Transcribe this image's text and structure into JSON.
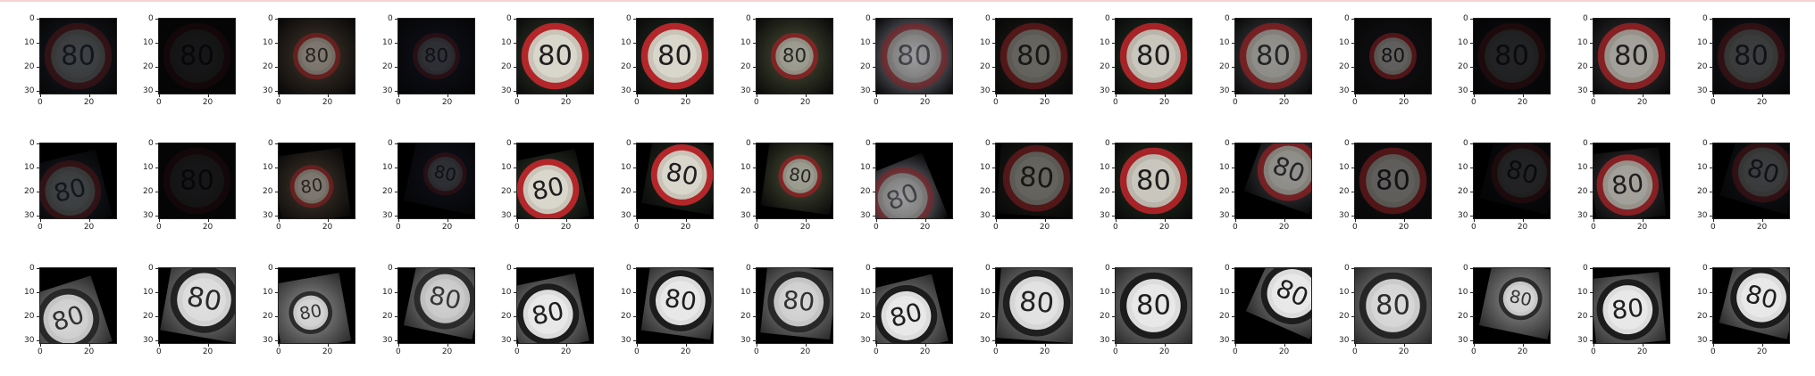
{
  "figure": {
    "rows": 3,
    "cols": 15,
    "x_ticks": [
      "0",
      "20"
    ],
    "y_ticks": [
      "0",
      "10",
      "20",
      "30"
    ],
    "sign_text": "80",
    "row_kinds": [
      "original-color",
      "augmented-color",
      "grayscale-equalized"
    ]
  },
  "colors": {
    "sign_ring": "#b3262a",
    "sign_face": "#d9d6cc",
    "digits_dark": "#1e1e1e",
    "axis": "#222222",
    "page_rule": "#f5d2d2"
  },
  "images": [
    [
      {
        "bg": "#25303e",
        "bright": 0.35,
        "rot": 0
      },
      {
        "bg": "#0e0d14",
        "bright": 0.12,
        "rot": 0
      },
      {
        "bg": "#5a4a3c",
        "bright": 0.6,
        "rot": 0,
        "small": true
      },
      {
        "bg": "#1a1e30",
        "bright": 0.28,
        "rot": 0,
        "small": true
      },
      {
        "bg": "#3b4632",
        "bright": 1,
        "rot": 0
      },
      {
        "bg": "#273324",
        "bright": 1,
        "rot": 0
      },
      {
        "bg": "#5b6244",
        "bright": 0.75,
        "rot": 0,
        "small": true
      },
      {
        "bg": "#c9cde0",
        "bright": 0.55,
        "rot": 0
      },
      {
        "bg": "#2b2a24",
        "bright": 0.55,
        "rot": 0
      },
      {
        "bg": "#2a3a28",
        "bright": 0.95,
        "rot": 0
      },
      {
        "bg": "#5c6066",
        "bright": 0.7,
        "rot": 0
      },
      {
        "bg": "#18181e",
        "bright": 0.55,
        "rot": 0,
        "small": true
      },
      {
        "bg": "#12141c",
        "bright": 0.22,
        "rot": 0
      },
      {
        "bg": "#47434a",
        "bright": 0.8,
        "rot": 0
      },
      {
        "bg": "#1e2430",
        "bright": 0.35,
        "rot": 0
      }
    ],
    [
      {
        "bg": "#25303e",
        "bright": 0.35,
        "rot": -14,
        "shear": true
      },
      {
        "bg": "#0e0d14",
        "bright": 0.12,
        "rot": 0
      },
      {
        "bg": "#5a4a3c",
        "bright": 0.6,
        "rot": -8,
        "shear": true,
        "small": true
      },
      {
        "bg": "#1a1e30",
        "bright": 0.28,
        "rot": 12,
        "shear": true,
        "small": true
      },
      {
        "bg": "#3b4632",
        "bright": 1,
        "rot": -12,
        "shear": true
      },
      {
        "bg": "#273324",
        "bright": 1,
        "rot": 10,
        "shear": true
      },
      {
        "bg": "#5b6244",
        "bright": 0.75,
        "rot": 8,
        "shear": true,
        "small": true
      },
      {
        "bg": "#c9cde0",
        "bright": 0.55,
        "rot": -22,
        "shear": true
      },
      {
        "bg": "#2b2a24",
        "bright": 0.55,
        "rot": 4
      },
      {
        "bg": "#2a3a28",
        "bright": 0.95,
        "rot": 0
      },
      {
        "bg": "#5c6066",
        "bright": 0.7,
        "rot": 20,
        "shear": true
      },
      {
        "bg": "#18181e",
        "bright": 0.55,
        "rot": 0
      },
      {
        "bg": "#12141c",
        "bright": 0.22,
        "rot": 14,
        "shear": true
      },
      {
        "bg": "#47434a",
        "bright": 0.8,
        "rot": -6,
        "shear": true
      },
      {
        "bg": "#1e2430",
        "bright": 0.35,
        "rot": 16,
        "shear": true
      }
    ],
    [
      {
        "gray": true,
        "rot": -18,
        "shear": true,
        "bright": 0.8
      },
      {
        "gray": true,
        "rot": 10,
        "bright": 0.9
      },
      {
        "gray": true,
        "rot": -10,
        "shear": true,
        "bright": 0.8,
        "small": true
      },
      {
        "gray": true,
        "rot": 12,
        "shear": true,
        "bright": 0.75
      },
      {
        "gray": true,
        "rot": -12,
        "shear": true,
        "bright": 1
      },
      {
        "gray": true,
        "rot": 8,
        "shear": true,
        "bright": 1
      },
      {
        "gray": true,
        "rot": 6,
        "shear": true,
        "bright": 0.8
      },
      {
        "gray": true,
        "rot": -14,
        "shear": true,
        "bright": 1
      },
      {
        "gray": true,
        "rot": 4,
        "bright": 0.95
      },
      {
        "gray": true,
        "rot": 0,
        "bright": 1
      },
      {
        "gray": true,
        "rot": 24,
        "shear": true,
        "bright": 1
      },
      {
        "gray": true,
        "rot": 0,
        "bright": 0.85
      },
      {
        "gray": true,
        "rot": 12,
        "shear": true,
        "bright": 0.8,
        "small": true
      },
      {
        "gray": true,
        "rot": -6,
        "shear": true,
        "bright": 1
      },
      {
        "gray": true,
        "rot": 14,
        "shear": true,
        "bright": 1
      }
    ]
  ]
}
